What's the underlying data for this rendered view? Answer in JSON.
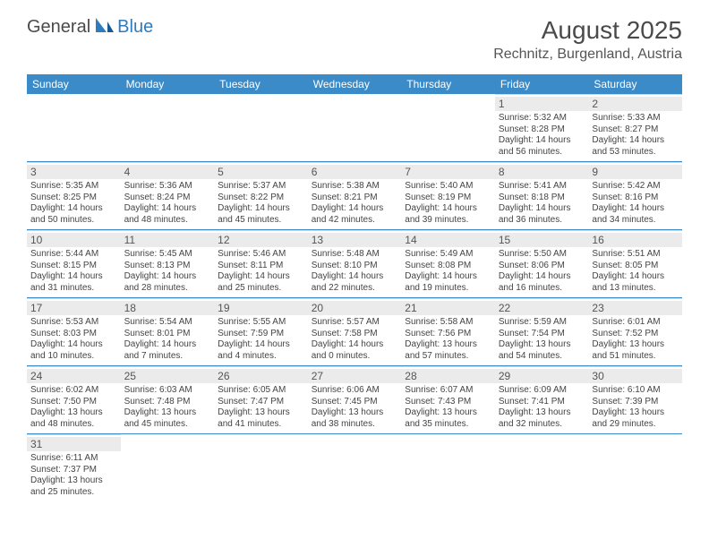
{
  "logo": {
    "text_dark": "General",
    "text_blue": "Blue"
  },
  "title": "August 2025",
  "location": "Rechnitz, Burgenland, Austria",
  "day_headers": [
    "Sunday",
    "Monday",
    "Tuesday",
    "Wednesday",
    "Thursday",
    "Friday",
    "Saturday"
  ],
  "header_bg": "#3b8bc9",
  "header_fg": "#ffffff",
  "daynum_bg": "#ebebeb",
  "divider_color": "#3b8bc9",
  "cell_border": "#d8d8d8",
  "font_family": "Arial",
  "title_fontsize": 28,
  "location_fontsize": 16,
  "header_fontsize": 12,
  "daynum_fontsize": 12,
  "info_fontsize": 10,
  "weeks": [
    [
      {
        "day": "",
        "sunrise": "",
        "sunset": "",
        "daylight": ""
      },
      {
        "day": "",
        "sunrise": "",
        "sunset": "",
        "daylight": ""
      },
      {
        "day": "",
        "sunrise": "",
        "sunset": "",
        "daylight": ""
      },
      {
        "day": "",
        "sunrise": "",
        "sunset": "",
        "daylight": ""
      },
      {
        "day": "",
        "sunrise": "",
        "sunset": "",
        "daylight": ""
      },
      {
        "day": "1",
        "sunrise": "Sunrise: 5:32 AM",
        "sunset": "Sunset: 8:28 PM",
        "daylight": "Daylight: 14 hours and 56 minutes."
      },
      {
        "day": "2",
        "sunrise": "Sunrise: 5:33 AM",
        "sunset": "Sunset: 8:27 PM",
        "daylight": "Daylight: 14 hours and 53 minutes."
      }
    ],
    [
      {
        "day": "3",
        "sunrise": "Sunrise: 5:35 AM",
        "sunset": "Sunset: 8:25 PM",
        "daylight": "Daylight: 14 hours and 50 minutes."
      },
      {
        "day": "4",
        "sunrise": "Sunrise: 5:36 AM",
        "sunset": "Sunset: 8:24 PM",
        "daylight": "Daylight: 14 hours and 48 minutes."
      },
      {
        "day": "5",
        "sunrise": "Sunrise: 5:37 AM",
        "sunset": "Sunset: 8:22 PM",
        "daylight": "Daylight: 14 hours and 45 minutes."
      },
      {
        "day": "6",
        "sunrise": "Sunrise: 5:38 AM",
        "sunset": "Sunset: 8:21 PM",
        "daylight": "Daylight: 14 hours and 42 minutes."
      },
      {
        "day": "7",
        "sunrise": "Sunrise: 5:40 AM",
        "sunset": "Sunset: 8:19 PM",
        "daylight": "Daylight: 14 hours and 39 minutes."
      },
      {
        "day": "8",
        "sunrise": "Sunrise: 5:41 AM",
        "sunset": "Sunset: 8:18 PM",
        "daylight": "Daylight: 14 hours and 36 minutes."
      },
      {
        "day": "9",
        "sunrise": "Sunrise: 5:42 AM",
        "sunset": "Sunset: 8:16 PM",
        "daylight": "Daylight: 14 hours and 34 minutes."
      }
    ],
    [
      {
        "day": "10",
        "sunrise": "Sunrise: 5:44 AM",
        "sunset": "Sunset: 8:15 PM",
        "daylight": "Daylight: 14 hours and 31 minutes."
      },
      {
        "day": "11",
        "sunrise": "Sunrise: 5:45 AM",
        "sunset": "Sunset: 8:13 PM",
        "daylight": "Daylight: 14 hours and 28 minutes."
      },
      {
        "day": "12",
        "sunrise": "Sunrise: 5:46 AM",
        "sunset": "Sunset: 8:11 PM",
        "daylight": "Daylight: 14 hours and 25 minutes."
      },
      {
        "day": "13",
        "sunrise": "Sunrise: 5:48 AM",
        "sunset": "Sunset: 8:10 PM",
        "daylight": "Daylight: 14 hours and 22 minutes."
      },
      {
        "day": "14",
        "sunrise": "Sunrise: 5:49 AM",
        "sunset": "Sunset: 8:08 PM",
        "daylight": "Daylight: 14 hours and 19 minutes."
      },
      {
        "day": "15",
        "sunrise": "Sunrise: 5:50 AM",
        "sunset": "Sunset: 8:06 PM",
        "daylight": "Daylight: 14 hours and 16 minutes."
      },
      {
        "day": "16",
        "sunrise": "Sunrise: 5:51 AM",
        "sunset": "Sunset: 8:05 PM",
        "daylight": "Daylight: 14 hours and 13 minutes."
      }
    ],
    [
      {
        "day": "17",
        "sunrise": "Sunrise: 5:53 AM",
        "sunset": "Sunset: 8:03 PM",
        "daylight": "Daylight: 14 hours and 10 minutes."
      },
      {
        "day": "18",
        "sunrise": "Sunrise: 5:54 AM",
        "sunset": "Sunset: 8:01 PM",
        "daylight": "Daylight: 14 hours and 7 minutes."
      },
      {
        "day": "19",
        "sunrise": "Sunrise: 5:55 AM",
        "sunset": "Sunset: 7:59 PM",
        "daylight": "Daylight: 14 hours and 4 minutes."
      },
      {
        "day": "20",
        "sunrise": "Sunrise: 5:57 AM",
        "sunset": "Sunset: 7:58 PM",
        "daylight": "Daylight: 14 hours and 0 minutes."
      },
      {
        "day": "21",
        "sunrise": "Sunrise: 5:58 AM",
        "sunset": "Sunset: 7:56 PM",
        "daylight": "Daylight: 13 hours and 57 minutes."
      },
      {
        "day": "22",
        "sunrise": "Sunrise: 5:59 AM",
        "sunset": "Sunset: 7:54 PM",
        "daylight": "Daylight: 13 hours and 54 minutes."
      },
      {
        "day": "23",
        "sunrise": "Sunrise: 6:01 AM",
        "sunset": "Sunset: 7:52 PM",
        "daylight": "Daylight: 13 hours and 51 minutes."
      }
    ],
    [
      {
        "day": "24",
        "sunrise": "Sunrise: 6:02 AM",
        "sunset": "Sunset: 7:50 PM",
        "daylight": "Daylight: 13 hours and 48 minutes."
      },
      {
        "day": "25",
        "sunrise": "Sunrise: 6:03 AM",
        "sunset": "Sunset: 7:48 PM",
        "daylight": "Daylight: 13 hours and 45 minutes."
      },
      {
        "day": "26",
        "sunrise": "Sunrise: 6:05 AM",
        "sunset": "Sunset: 7:47 PM",
        "daylight": "Daylight: 13 hours and 41 minutes."
      },
      {
        "day": "27",
        "sunrise": "Sunrise: 6:06 AM",
        "sunset": "Sunset: 7:45 PM",
        "daylight": "Daylight: 13 hours and 38 minutes."
      },
      {
        "day": "28",
        "sunrise": "Sunrise: 6:07 AM",
        "sunset": "Sunset: 7:43 PM",
        "daylight": "Daylight: 13 hours and 35 minutes."
      },
      {
        "day": "29",
        "sunrise": "Sunrise: 6:09 AM",
        "sunset": "Sunset: 7:41 PM",
        "daylight": "Daylight: 13 hours and 32 minutes."
      },
      {
        "day": "30",
        "sunrise": "Sunrise: 6:10 AM",
        "sunset": "Sunset: 7:39 PM",
        "daylight": "Daylight: 13 hours and 29 minutes."
      }
    ],
    [
      {
        "day": "31",
        "sunrise": "Sunrise: 6:11 AM",
        "sunset": "Sunset: 7:37 PM",
        "daylight": "Daylight: 13 hours and 25 minutes."
      },
      {
        "day": "",
        "sunrise": "",
        "sunset": "",
        "daylight": ""
      },
      {
        "day": "",
        "sunrise": "",
        "sunset": "",
        "daylight": ""
      },
      {
        "day": "",
        "sunrise": "",
        "sunset": "",
        "daylight": ""
      },
      {
        "day": "",
        "sunrise": "",
        "sunset": "",
        "daylight": ""
      },
      {
        "day": "",
        "sunrise": "",
        "sunset": "",
        "daylight": ""
      },
      {
        "day": "",
        "sunrise": "",
        "sunset": "",
        "daylight": ""
      }
    ]
  ]
}
